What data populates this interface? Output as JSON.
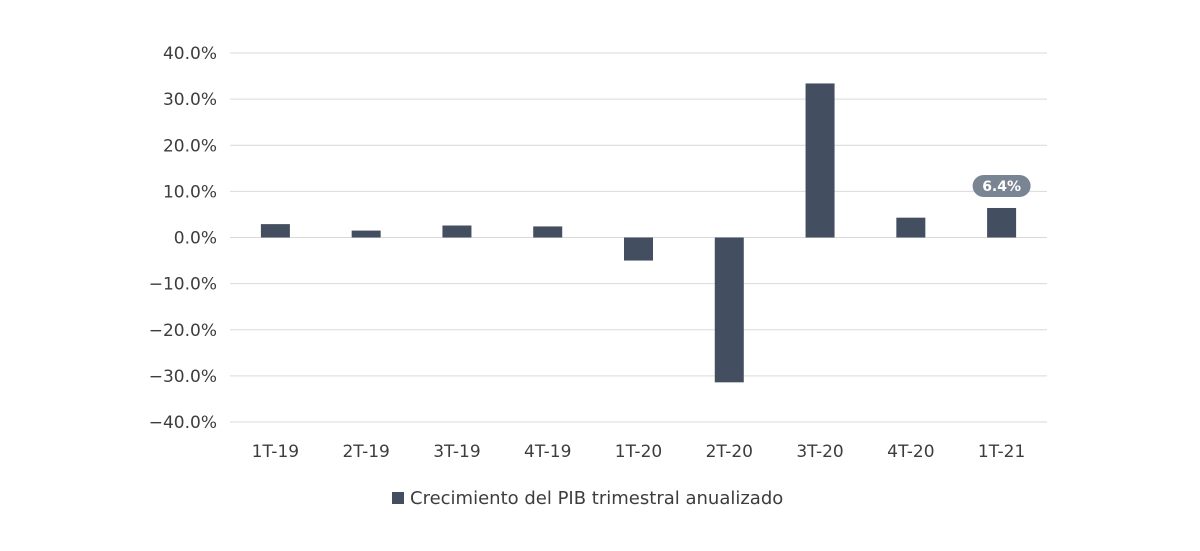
{
  "chart_data": {
    "type": "bar",
    "categories": [
      "1T-19",
      "2T-19",
      "3T-19",
      "4T-19",
      "1T-20",
      "2T-20",
      "3T-20",
      "4T-20",
      "1T-21"
    ],
    "series": [
      {
        "name": "Crecimiento del PIB trimestral anualizado",
        "values": [
          2.9,
          1.5,
          2.6,
          2.4,
          -5.0,
          -31.4,
          33.4,
          4.3,
          6.4
        ],
        "color": "#434f60"
      }
    ],
    "ylim": [
      -40,
      40
    ],
    "yticks": [
      40,
      30,
      20,
      10,
      0,
      -10,
      -20,
      -30,
      -40
    ],
    "ytick_labels": [
      "40.0%",
      "30.0%",
      "20.0%",
      "10.0%",
      "0.0%",
      "−10.0%",
      "−20.0%",
      "−30.0%",
      "−40.0%"
    ],
    "grid": true,
    "legend": "bottom",
    "annotation": {
      "category": "1T-21",
      "text": "6.4%",
      "color": "#7a8594"
    }
  }
}
